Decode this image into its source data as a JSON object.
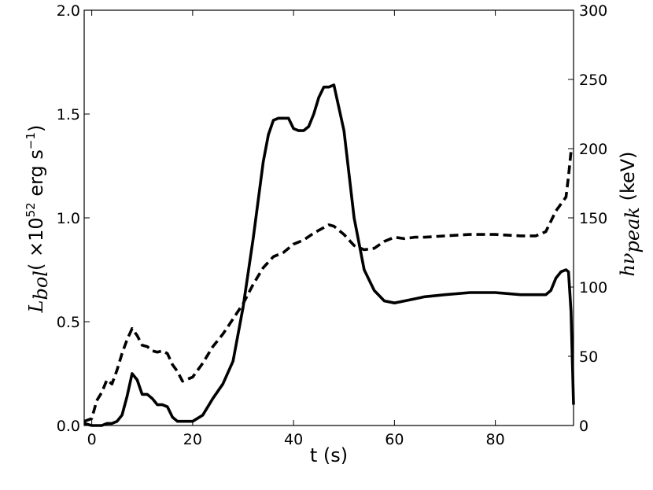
{
  "chart_data": {
    "type": "line",
    "xlabel": "t (s)",
    "ylabel_left": {
      "symbol": "L",
      "sub": "bol",
      "text": "( ×10",
      "exp": "52",
      "unit": " erg s",
      "unit_exp": "−1",
      "close": ")"
    },
    "ylabel_right": {
      "symbol": "hν",
      "sub": "peak",
      "unit": "(keV)"
    },
    "xlim": [
      -1.5,
      95.5
    ],
    "ylim_left": [
      0,
      2.0
    ],
    "ylim_right": [
      0,
      300
    ],
    "xticks": [
      0,
      20,
      40,
      60,
      80
    ],
    "xtick_labels": [
      "0",
      "20",
      "40",
      "60",
      "80"
    ],
    "yticks_left": [
      0,
      0.5,
      1.0,
      1.5,
      2.0
    ],
    "ytick_labels_left": [
      "0.0",
      "0.5",
      "1.0",
      "1.5",
      "2.0"
    ],
    "yticks_right": [
      0,
      50,
      100,
      150,
      200,
      250,
      300
    ],
    "ytick_labels_right": [
      "0",
      "50",
      "100",
      "150",
      "200",
      "250",
      "300"
    ],
    "grid": false,
    "series": [
      {
        "style": "solid",
        "axis": "left",
        "x": [
          -1.5,
          0,
          2,
          3,
          4,
          5,
          6,
          7,
          8,
          9,
          10,
          11,
          12,
          13,
          14,
          15,
          16,
          17,
          18,
          20,
          22,
          24,
          26,
          28,
          30,
          32,
          34,
          35,
          36,
          37,
          38,
          39,
          40,
          41,
          42,
          43,
          44,
          45,
          46,
          47,
          48,
          50,
          52,
          54,
          56,
          58,
          60,
          62,
          64,
          66,
          70,
          75,
          80,
          85,
          88,
          90,
          91,
          92,
          93,
          94,
          94.5,
          95,
          95.5
        ],
        "values": [
          0.01,
          0.0,
          0.0,
          0.01,
          0.01,
          0.02,
          0.05,
          0.14,
          0.25,
          0.22,
          0.15,
          0.15,
          0.13,
          0.1,
          0.1,
          0.09,
          0.04,
          0.02,
          0.02,
          0.02,
          0.05,
          0.13,
          0.2,
          0.31,
          0.57,
          0.9,
          1.27,
          1.4,
          1.47,
          1.48,
          1.48,
          1.48,
          1.43,
          1.42,
          1.42,
          1.44,
          1.5,
          1.58,
          1.63,
          1.63,
          1.64,
          1.42,
          1.0,
          0.75,
          0.65,
          0.6,
          0.59,
          0.6,
          0.61,
          0.62,
          0.63,
          0.64,
          0.64,
          0.63,
          0.63,
          0.63,
          0.65,
          0.71,
          0.74,
          0.75,
          0.74,
          0.55,
          0.1
        ]
      },
      {
        "style": "dashed",
        "axis": "right",
        "x": [
          -1.5,
          0,
          1,
          2,
          3,
          4,
          5,
          6,
          7,
          8,
          9,
          10,
          11,
          12,
          13,
          14,
          15,
          16,
          17,
          18,
          20,
          22,
          24,
          26,
          28,
          30,
          32,
          34,
          36,
          38,
          40,
          42,
          44,
          46,
          47,
          48,
          50,
          52,
          54,
          56,
          58,
          60,
          62,
          64,
          66,
          70,
          75,
          80,
          85,
          88,
          90,
          92,
          93,
          94,
          94.5,
          95,
          95.5
        ],
        "values": [
          3,
          5,
          18,
          24,
          33,
          30,
          40,
          52,
          62,
          70,
          65,
          58,
          57,
          54,
          53,
          54,
          52,
          44,
          39,
          32,
          35,
          45,
          57,
          66,
          77,
          88,
          102,
          114,
          122,
          125,
          131,
          134,
          139,
          143,
          145,
          144,
          138,
          130,
          127,
          128,
          133,
          136,
          135,
          136,
          136,
          137,
          138,
          138,
          137,
          137,
          140,
          155,
          160,
          165,
          180,
          198,
          200
        ]
      }
    ]
  }
}
